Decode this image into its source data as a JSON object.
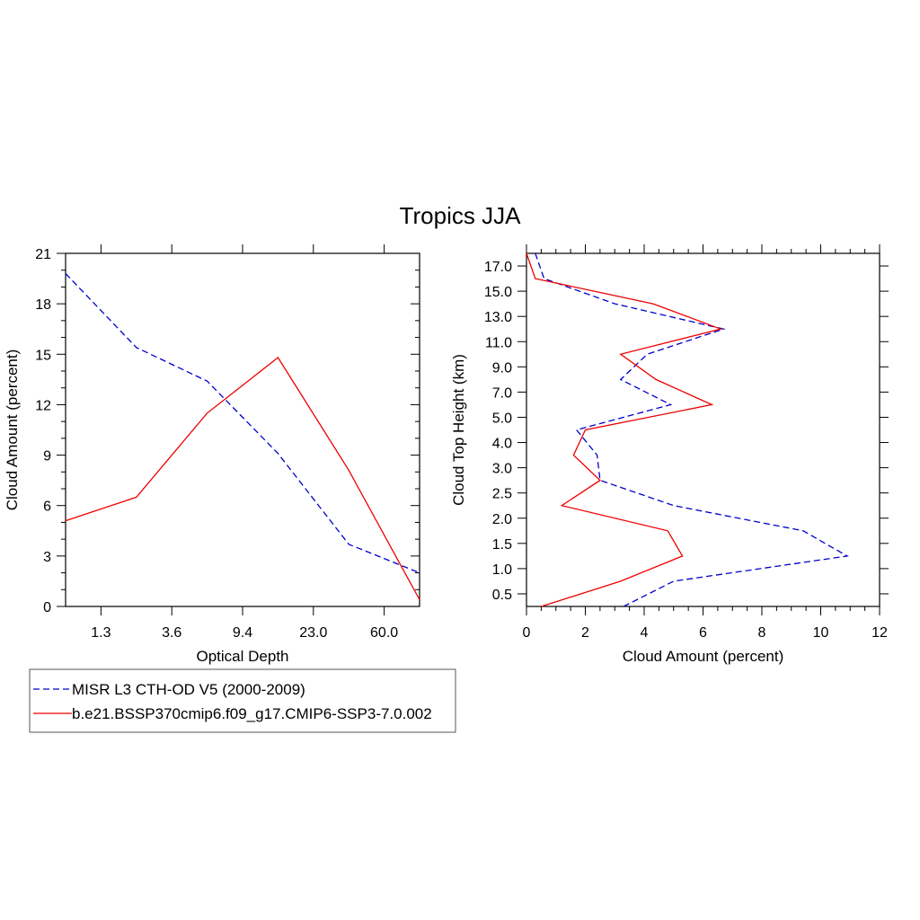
{
  "title": "Tropics JJA",
  "colors": {
    "obs": "#0000cc",
    "model": "#ee0000",
    "axis": "#000000"
  },
  "legend": [
    {
      "label": "MISR L3 CTH-OD V5 (2000-2009)",
      "color": "#0000cc",
      "dash": true
    },
    {
      "label": "b.e21.BSSP370cmip6.f09_g17.CMIP6-SSP3-7.0.002",
      "color": "#ee0000",
      "dash": false
    }
  ],
  "chart_data": [
    {
      "type": "line",
      "xlabel": "Optical Depth",
      "ylabel": "Cloud Amount (percent)",
      "x_tick_labels": [
        "1.3",
        "3.6",
        "9.4",
        "23.0",
        "60.0"
      ],
      "y_ticks": [
        "0",
        "3",
        "6",
        "9",
        "12",
        "15",
        "18",
        "21"
      ],
      "ylim": [
        0,
        21
      ],
      "series": [
        {
          "name": "MISR L3 CTH-OD V5 (2000-2009)",
          "values": [
            19.8,
            15.4,
            13.4,
            9.1,
            3.7,
            2.0
          ]
        },
        {
          "name": "b.e21.BSSP370cmip6.f09_g17.CMIP6-SSP3-7.0.002",
          "values": [
            5.1,
            6.5,
            11.5,
            14.8,
            8.1,
            0.4
          ]
        }
      ]
    },
    {
      "type": "line",
      "xlabel": "Cloud Amount (percent)",
      "ylabel": "Cloud Top Height (km)",
      "x_ticks": [
        "0",
        "2",
        "4",
        "6",
        "8",
        "10",
        "12"
      ],
      "xlim": [
        0,
        12
      ],
      "y_tick_labels": [
        "0.5",
        "1.0",
        "1.5",
        "2.0",
        "2.5",
        "3.0",
        "4.0",
        "5.0",
        "7.0",
        "9.0",
        "11.0",
        "13.0",
        "15.0",
        "17.0"
      ],
      "series": [
        {
          "name": "MISR L3 CTH-OD V5 (2000-2009)",
          "values": [
            3.3,
            5.0,
            10.9,
            9.4,
            5.0,
            2.5,
            2.4,
            1.7,
            4.9,
            3.2,
            4.1,
            6.7,
            3.0,
            0.6,
            0.3
          ]
        },
        {
          "name": "b.e21.BSSP370cmip6.f09_g17.CMIP6-SSP3-7.0.002",
          "values": [
            0.5,
            3.2,
            5.3,
            4.8,
            1.2,
            2.5,
            1.6,
            2.0,
            6.3,
            4.4,
            3.2,
            6.6,
            4.3,
            0.3,
            0.0
          ]
        }
      ]
    }
  ]
}
